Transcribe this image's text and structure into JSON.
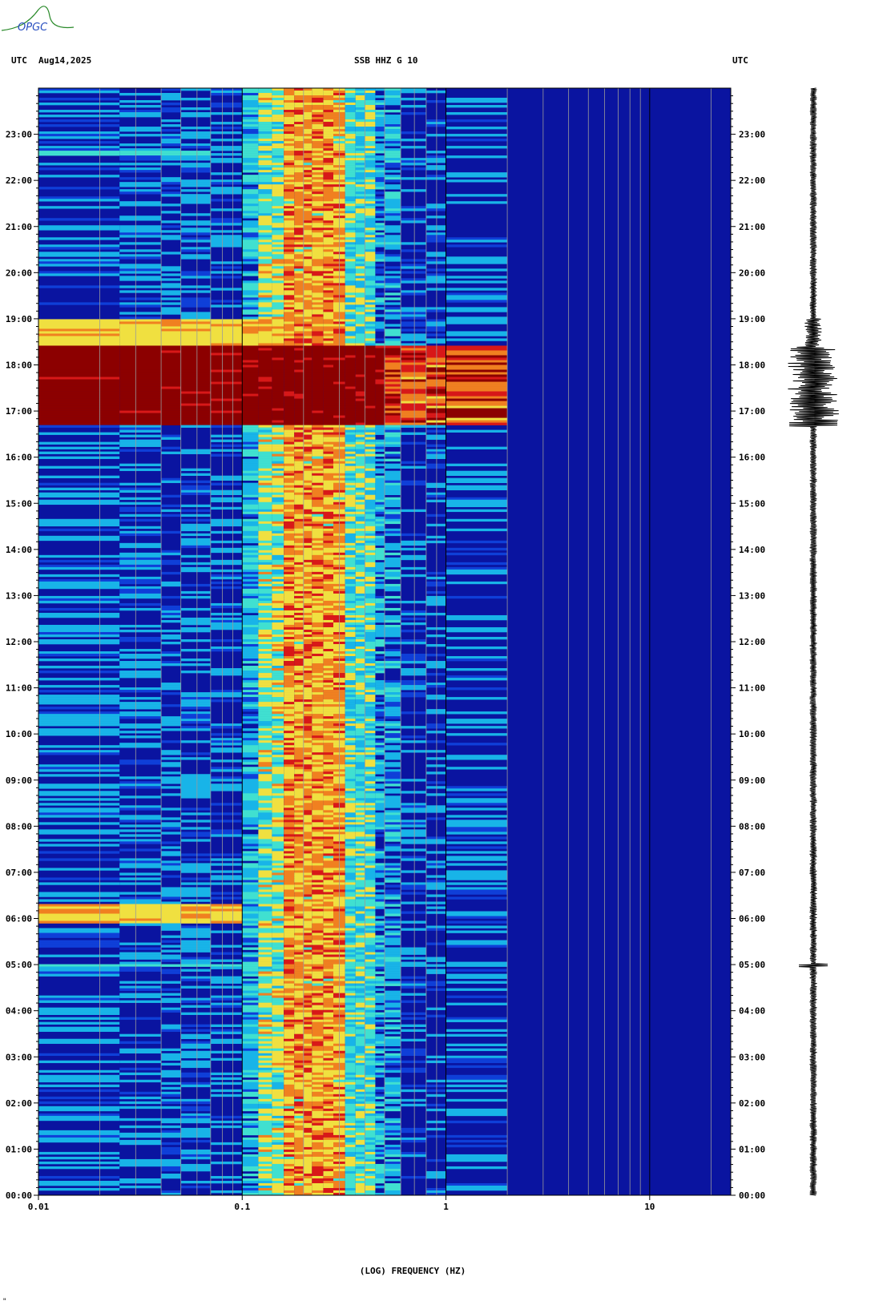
{
  "header": {
    "left_tz": "UTC",
    "date": "Aug14,2025",
    "station": "SSB HHZ G 10",
    "right_tz": "UTC"
  },
  "logo": {
    "text": "OPGC"
  },
  "colors": {
    "background_blue": "#0a14a0",
    "low": "#0f3fd8",
    "mid": "#18b4e8",
    "high_cyan": "#40e0d0",
    "yellow": "#f0e040",
    "orange": "#f08020",
    "red": "#d81818",
    "maroon": "#8c0000",
    "grid": "#9a9a9a",
    "trace": "#000000"
  },
  "chart_data": {
    "type": "heatmap",
    "title": "SSB HHZ G 10",
    "xlabel": "(LOG) FREQUENCY (HZ)",
    "x_scale": "log",
    "xlim": [
      0.01,
      25
    ],
    "x_tick_labels": [
      "0.01",
      "0.1",
      "1",
      "10"
    ],
    "x_tick_values": [
      0.01,
      0.1,
      1,
      10
    ],
    "ylim_hours": [
      0,
      24
    ],
    "y_tick_labels": [
      "00:00",
      "01:00",
      "02:00",
      "03:00",
      "04:00",
      "05:00",
      "06:00",
      "07:00",
      "08:00",
      "09:00",
      "10:00",
      "11:00",
      "12:00",
      "13:00",
      "14:00",
      "15:00",
      "16:00",
      "17:00",
      "18:00",
      "19:00",
      "20:00",
      "21:00",
      "22:00",
      "23:00"
    ],
    "microseism_band_hz": [
      0.12,
      0.45
    ],
    "events": [
      {
        "start_hour": 16.7,
        "end_hour": 18.4,
        "max_freq_hz": 1.8,
        "intensity": "high"
      },
      {
        "start_hour": 18.4,
        "end_hour": 19.0,
        "max_freq_hz": 0.3,
        "intensity": "medium"
      },
      {
        "start_hour": 5.9,
        "end_hour": 6.3,
        "max_freq_hz": 0.1,
        "intensity": "medium"
      },
      {
        "start_hour": 4.97,
        "end_hour": 5.03,
        "max_freq_hz": 1.5,
        "intensity": "low"
      },
      {
        "start_hour": 22.55,
        "end_hour": 22.65,
        "max_freq_hz": 0.07,
        "intensity": "low"
      }
    ]
  },
  "footer_mark": "\""
}
